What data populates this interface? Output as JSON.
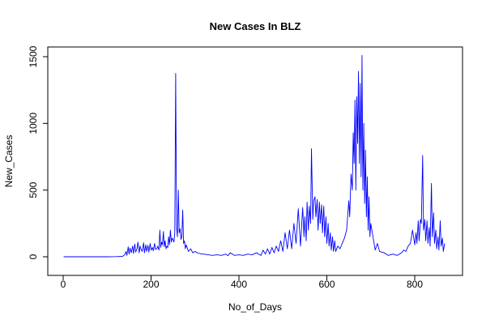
{
  "chart_data": {
    "type": "line",
    "title": "New Cases In BLZ",
    "xlabel": "No_of_Days",
    "ylabel": "New_Cases",
    "xlim": [
      0,
      870
    ],
    "ylim": [
      0,
      1500
    ],
    "x_ticks": [
      0,
      200,
      400,
      600,
      800
    ],
    "y_ticks": [
      0,
      500,
      1000,
      1500
    ],
    "grid": false,
    "legend": "none",
    "color": "#0000ff",
    "series": [
      {
        "x": [
          1,
          20,
          40,
          60,
          80,
          100,
          120,
          135,
          140,
          143,
          145,
          148,
          150,
          152,
          155,
          158,
          160,
          163,
          165,
          168,
          170,
          173,
          175,
          178,
          180,
          183,
          185,
          188,
          190,
          193,
          195,
          198,
          200,
          203,
          205,
          208,
          210,
          213,
          215,
          218,
          220,
          222,
          224,
          226,
          228,
          230,
          232,
          234,
          236,
          238,
          240,
          242,
          244,
          246,
          248,
          250,
          252,
          254,
          256,
          258,
          260,
          262,
          264,
          266,
          268,
          270,
          272,
          274,
          276,
          278,
          280,
          285,
          290,
          295,
          300,
          305,
          310,
          315,
          320,
          330,
          340,
          350,
          360,
          370,
          375,
          380,
          390,
          400,
          410,
          420,
          430,
          440,
          450,
          455,
          460,
          465,
          470,
          475,
          480,
          485,
          490,
          495,
          500,
          505,
          510,
          515,
          520,
          525,
          530,
          535,
          540,
          545,
          548,
          550,
          553,
          555,
          558,
          560,
          563,
          565,
          568,
          570,
          573,
          575,
          578,
          580,
          583,
          585,
          588,
          590,
          593,
          595,
          598,
          600,
          603,
          605,
          608,
          610,
          613,
          615,
          618,
          620,
          625,
          630,
          635,
          640,
          645,
          650,
          652,
          655,
          658,
          660,
          662,
          664,
          666,
          668,
          670,
          672,
          674,
          676,
          678,
          680,
          682,
          684,
          686,
          688,
          690,
          692,
          694,
          696,
          698,
          700,
          705,
          710,
          715,
          720,
          730,
          740,
          750,
          760,
          770,
          775,
          780,
          785,
          790,
          795,
          800,
          803,
          805,
          808,
          810,
          813,
          815,
          818,
          820,
          823,
          825,
          828,
          830,
          833,
          835,
          838,
          840,
          843,
          845,
          848,
          850,
          853,
          855,
          858,
          860,
          863,
          865,
          868
        ],
        "y": [
          0,
          0,
          0,
          0,
          0,
          0,
          1,
          3,
          15,
          40,
          10,
          75,
          20,
          65,
          30,
          80,
          25,
          95,
          35,
          60,
          110,
          30,
          80,
          50,
          40,
          105,
          30,
          90,
          40,
          85,
          35,
          100,
          50,
          70,
          45,
          100,
          55,
          60,
          80,
          50,
          200,
          70,
          110,
          90,
          190,
          75,
          120,
          60,
          80,
          70,
          150,
          90,
          200,
          110,
          140,
          130,
          110,
          180,
          1375,
          220,
          150,
          500,
          180,
          210,
          130,
          150,
          350,
          100,
          120,
          60,
          90,
          40,
          60,
          30,
          40,
          30,
          25,
          20,
          20,
          15,
          10,
          15,
          10,
          20,
          8,
          30,
          10,
          15,
          10,
          20,
          15,
          30,
          10,
          50,
          20,
          60,
          20,
          70,
          30,
          80,
          40,
          120,
          40,
          180,
          60,
          200,
          60,
          250,
          100,
          360,
          80,
          370,
          150,
          300,
          120,
          410,
          200,
          380,
          250,
          810,
          280,
          420,
          450,
          300,
          430,
          200,
          410,
          250,
          390,
          180,
          380,
          150,
          300,
          100,
          250,
          80,
          180,
          50,
          150,
          40,
          120,
          40,
          80,
          60,
          100,
          140,
          200,
          420,
          300,
          620,
          500,
          930,
          700,
          1175,
          500,
          1200,
          850,
          1390,
          700,
          1300,
          600,
          1510,
          500,
          1000,
          400,
          800,
          300,
          600,
          200,
          450,
          150,
          250,
          150,
          50,
          100,
          40,
          30,
          10,
          20,
          10,
          30,
          50,
          40,
          80,
          100,
          200,
          90,
          180,
          100,
          270,
          120,
          280,
          250,
          760,
          200,
          280,
          120,
          270,
          100,
          220,
          80,
          550,
          150,
          330,
          100,
          200,
          60,
          150,
          50,
          270,
          80,
          140,
          40,
          100
        ]
      }
    ]
  }
}
